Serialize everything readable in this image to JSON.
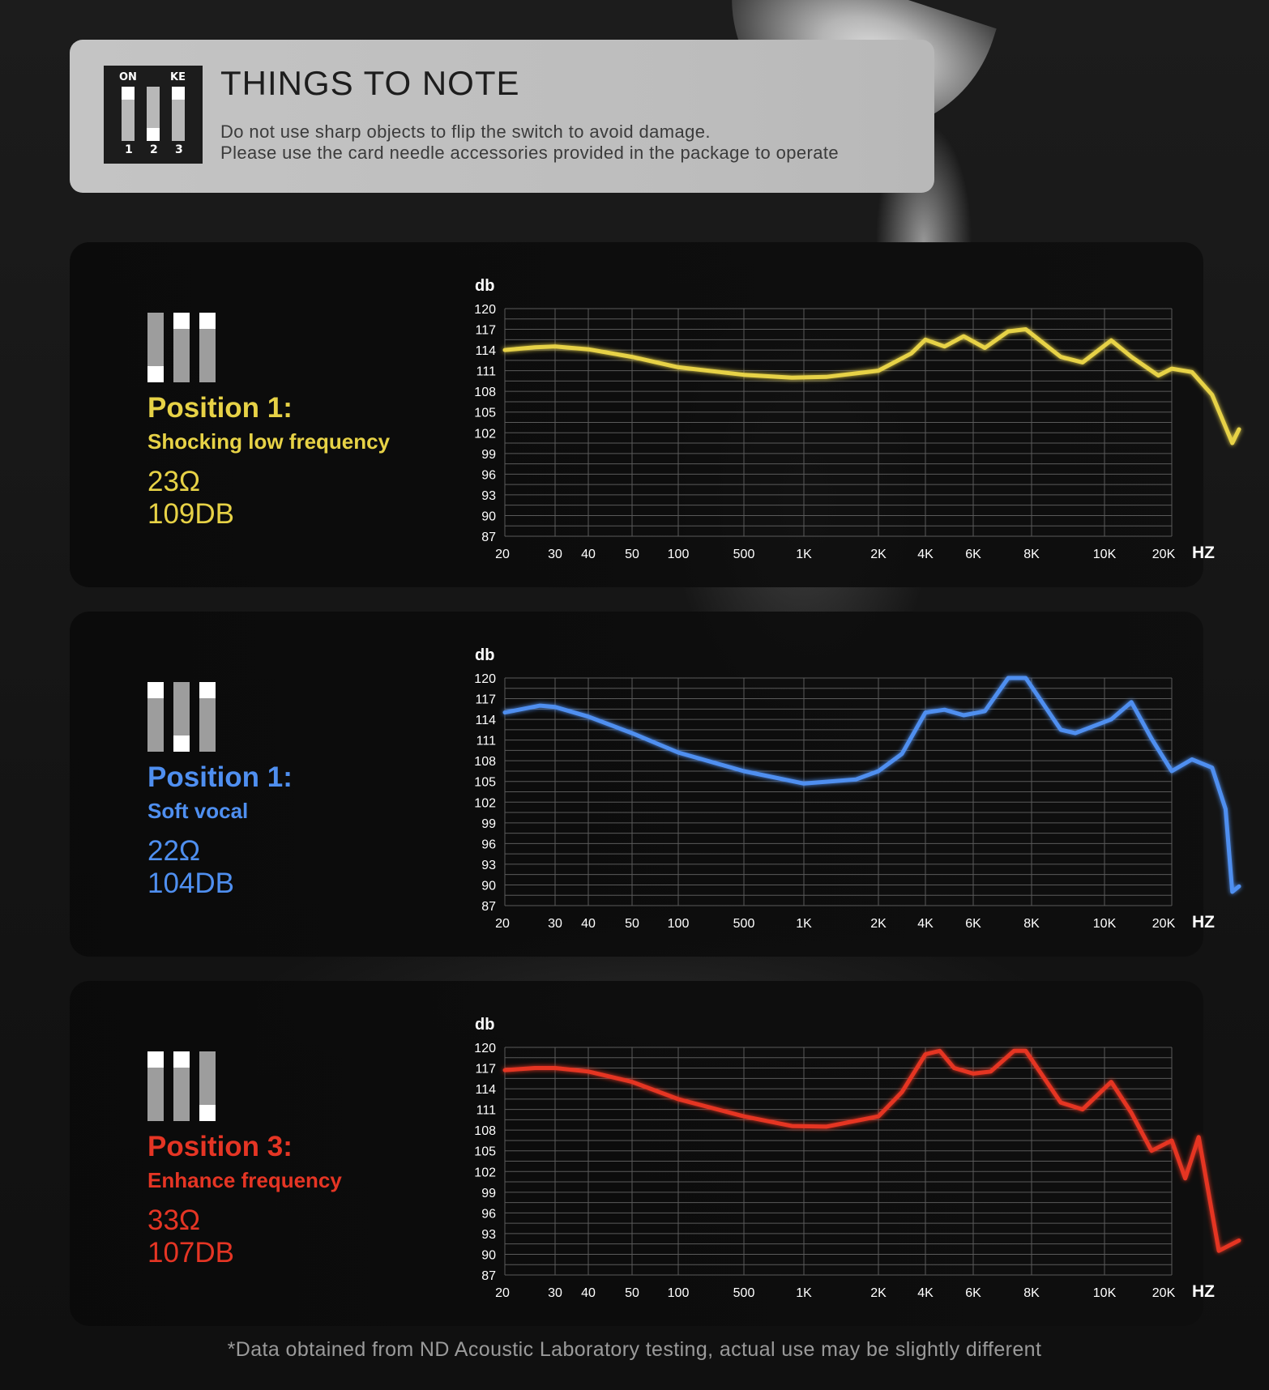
{
  "note": {
    "switch_labels": [
      "ON",
      "KE"
    ],
    "switch_numbers": [
      "1",
      "2",
      "3"
    ],
    "title": "THINGS TO NOTE",
    "lines": [
      "Do not use sharp objects to flip the switch to avoid damage.",
      "Please use the card needle accessories provided in the package to operate"
    ]
  },
  "positions": [
    {
      "title": "Position 1:",
      "subtitle": "Shocking low frequency",
      "impedance": "23Ω",
      "sensitivity": "109DB",
      "color": "#e7d246",
      "switch_up": [
        false,
        true,
        true
      ]
    },
    {
      "title": "Position 1:",
      "subtitle": "Soft vocal",
      "impedance": "22Ω",
      "sensitivity": "104DB",
      "color": "#4f8ff0",
      "switch_up": [
        true,
        false,
        true
      ]
    },
    {
      "title": "Position 3:",
      "subtitle": "Enhance frequency",
      "impedance": "33Ω",
      "sensitivity": "107DB",
      "color": "#e53524",
      "switch_up": [
        true,
        true,
        false
      ]
    }
  ],
  "chart_data": [
    {
      "type": "line",
      "ylabel": "db",
      "xlabel": "HZ",
      "y_ticks": [
        120,
        117,
        114,
        111,
        108,
        105,
        102,
        99,
        96,
        93,
        90,
        87
      ],
      "ylim": [
        87,
        120
      ],
      "x_ticks": [
        "20",
        "30",
        "40",
        "50",
        "100",
        "500",
        "1K",
        "2K",
        "4K",
        "6K",
        "8K",
        "10K",
        "20K"
      ],
      "grid": true,
      "series": [
        {
          "color": "#e7d246",
          "x": [
            0,
            0.6,
            1,
            2,
            3,
            4,
            5,
            5.8,
            6.3,
            7,
            7.7,
            8,
            8.4,
            8.8,
            9.2,
            9.6,
            9.9,
            10.4,
            10.7,
            11.1,
            11.4,
            11.8,
            12,
            12.3,
            12.6,
            12.9,
            13
          ],
          "y": [
            114,
            114.4,
            114.5,
            114.1,
            113,
            111.5,
            110.4,
            110,
            110.1,
            111,
            113.5,
            115.5,
            114.5,
            116,
            114.3,
            116.7,
            117,
            113,
            112.2,
            115.4,
            113,
            110.3,
            111.3,
            110.8,
            107.5,
            100.5,
            102.5
          ]
        }
      ]
    },
    {
      "type": "line",
      "ylabel": "db",
      "xlabel": "HZ",
      "y_ticks": [
        120,
        117,
        114,
        111,
        108,
        105,
        102,
        99,
        96,
        93,
        90,
        87
      ],
      "ylim": [
        87,
        120
      ],
      "x_ticks": [
        "20",
        "30",
        "40",
        "50",
        "100",
        "500",
        "1K",
        "2K",
        "4K",
        "6K",
        "8K",
        "10K",
        "20K"
      ],
      "grid": true,
      "series": [
        {
          "color": "#4f8ff0",
          "x": [
            0,
            0.7,
            1,
            2,
            3,
            4,
            5,
            6,
            6.7,
            7,
            7.5,
            8,
            8.4,
            8.8,
            9.2,
            9.6,
            9.9,
            10.4,
            10.6,
            11.1,
            11.4,
            11.7,
            12,
            12.3,
            12.6,
            12.8,
            12.9,
            13
          ],
          "y": [
            115,
            116,
            115.8,
            114.4,
            112,
            109.2,
            106.5,
            104.7,
            105.3,
            106.5,
            109,
            115,
            115.4,
            114.6,
            115.2,
            120,
            120,
            112.5,
            112,
            114,
            116.5,
            111.2,
            106.5,
            108.2,
            107,
            101,
            89,
            89.8
          ]
        }
      ]
    },
    {
      "type": "line",
      "ylabel": "db",
      "xlabel": "HZ",
      "y_ticks": [
        120,
        117,
        114,
        111,
        108,
        105,
        102,
        99,
        96,
        93,
        90,
        87
      ],
      "ylim": [
        87,
        120
      ],
      "x_ticks": [
        "20",
        "30",
        "40",
        "50",
        "100",
        "500",
        "1K",
        "2K",
        "4K",
        "6K",
        "8K",
        "10K",
        "20K"
      ],
      "grid": true,
      "series": [
        {
          "color": "#e53524",
          "x": [
            0,
            0.6,
            1,
            2,
            3,
            4,
            5,
            5.8,
            6.3,
            7,
            7.5,
            8,
            8.3,
            8.6,
            9,
            9.3,
            9.7,
            9.9,
            10.4,
            10.7,
            11.1,
            11.4,
            11.7,
            12,
            12.2,
            12.4,
            12.7,
            13
          ],
          "y": [
            116.7,
            117,
            117,
            116.5,
            115,
            112.5,
            110,
            108.6,
            108.5,
            110,
            113.5,
            119,
            119.5,
            117,
            116.2,
            116.5,
            119.5,
            119.5,
            112,
            111,
            115,
            110.5,
            105,
            106.5,
            101,
            107,
            90.5,
            92
          ]
        }
      ]
    }
  ],
  "footnote": "*Data obtained from ND Acoustic Laboratory testing, actual use may be slightly different"
}
